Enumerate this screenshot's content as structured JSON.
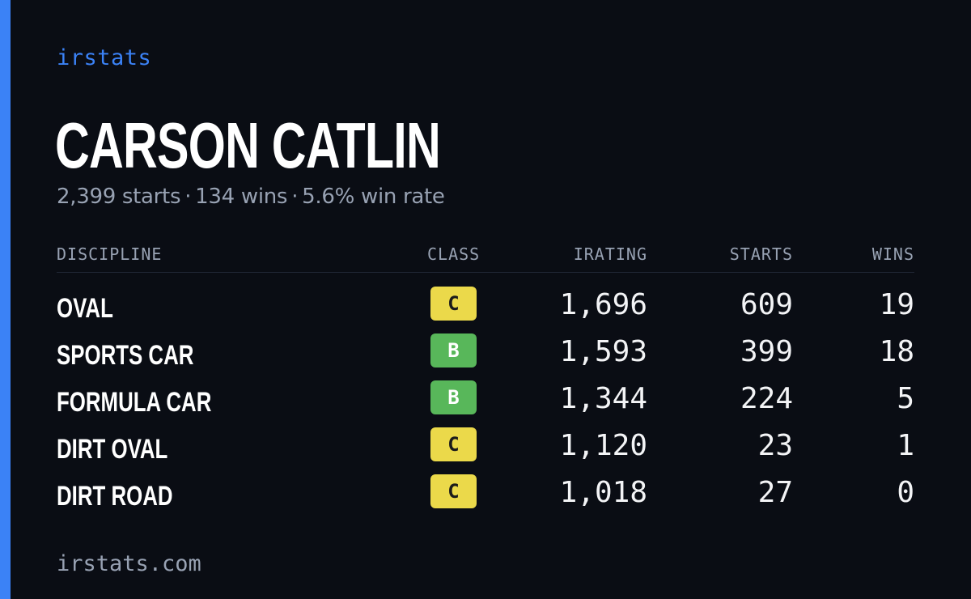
{
  "colors": {
    "accent": "#3b82f6",
    "background": "#0a0d14",
    "class_c": "#ebd94a",
    "class_b": "#58b75a"
  },
  "brand": "irstats",
  "driver": {
    "name": "CARSON CATLIN"
  },
  "summary": {
    "starts": "2,399 starts",
    "wins": "134 wins",
    "win_rate": "5.6% win rate",
    "separator": "·"
  },
  "table": {
    "headers": {
      "discipline": "DISCIPLINE",
      "class": "CLASS",
      "irating": "IRATING",
      "starts": "STARTS",
      "wins": "WINS"
    },
    "rows": [
      {
        "discipline": "OVAL",
        "class": "C",
        "irating": "1,696",
        "starts": "609",
        "wins": "19"
      },
      {
        "discipline": "SPORTS CAR",
        "class": "B",
        "irating": "1,593",
        "starts": "399",
        "wins": "18"
      },
      {
        "discipline": "FORMULA CAR",
        "class": "B",
        "irating": "1,344",
        "starts": "224",
        "wins": "5"
      },
      {
        "discipline": "DIRT OVAL",
        "class": "C",
        "irating": "1,120",
        "starts": "23",
        "wins": "1"
      },
      {
        "discipline": "DIRT ROAD",
        "class": "C",
        "irating": "1,018",
        "starts": "27",
        "wins": "0"
      }
    ]
  },
  "footer": "irstats.com"
}
